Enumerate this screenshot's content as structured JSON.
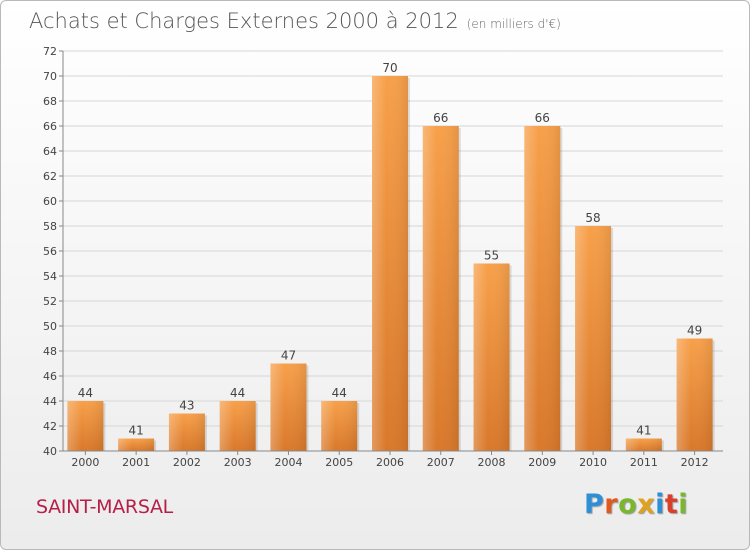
{
  "header": {
    "title": "Achats et Charges Externes 2000 à 2012",
    "unit": "(en milliers d'€)"
  },
  "footer": {
    "commune": "SAINT-MARSAL",
    "logo": "Proxiti"
  },
  "colors": {
    "bar_light": "#f7a04a",
    "bar_dark": "#d9782a",
    "logo_letters": [
      "#2f8fd6",
      "#e05a1e",
      "#79b82e",
      "#e0a21e",
      "#2f8fd6",
      "#d8402c",
      "#79b82e"
    ]
  },
  "chart_data": {
    "type": "bar",
    "title": "Achats et Charges Externes 2000 à 2012",
    "subtitle": "(en milliers d'€)",
    "categories": [
      "2000",
      "2001",
      "2002",
      "2003",
      "2004",
      "2005",
      "2006",
      "2007",
      "2008",
      "2009",
      "2010",
      "2011",
      "2012"
    ],
    "values": [
      44,
      41,
      43,
      44,
      47,
      44,
      70,
      66,
      55,
      66,
      58,
      41,
      49
    ],
    "ylim": [
      40,
      72
    ],
    "yticks": [
      40,
      42,
      44,
      46,
      48,
      50,
      52,
      54,
      56,
      58,
      60,
      62,
      64,
      66,
      68,
      70,
      72
    ],
    "grid": true,
    "data_labels": true
  }
}
